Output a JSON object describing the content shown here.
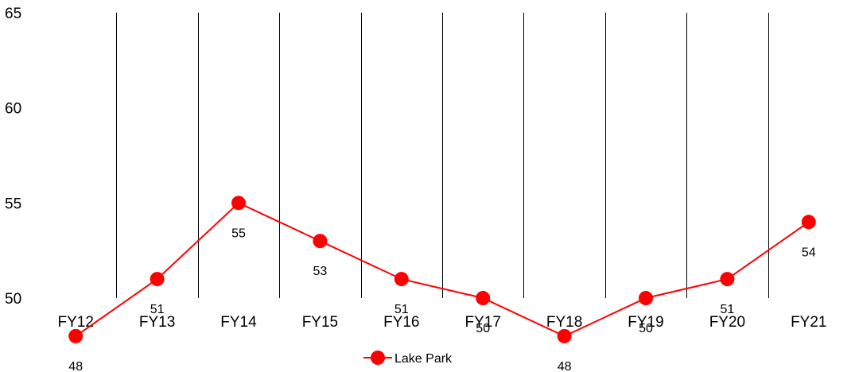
{
  "chart_data": {
    "type": "line",
    "categories": [
      "FY12",
      "FY13",
      "FY14",
      "FY15",
      "FY16",
      "FY17",
      "FY18",
      "FY19",
      "FY20",
      "FY21"
    ],
    "series": [
      {
        "name": "Lake Park",
        "values": [
          48,
          51,
          55,
          53,
          51,
          50,
          48,
          50,
          51,
          54
        ],
        "color": "#ff0000"
      }
    ],
    "ylim": [
      50,
      65
    ],
    "yticks": [
      "50",
      "55",
      "60",
      "65"
    ],
    "grid": {
      "vertical": true,
      "horizontal": false
    },
    "legend_position": "bottom-center",
    "data_labels": true
  }
}
